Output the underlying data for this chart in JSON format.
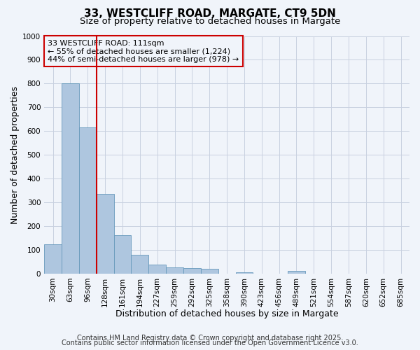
{
  "title": "33, WESTCLIFF ROAD, MARGATE, CT9 5DN",
  "subtitle": "Size of property relative to detached houses in Margate",
  "xlabel": "Distribution of detached houses by size in Margate",
  "ylabel": "Number of detached properties",
  "categories": [
    "30sqm",
    "63sqm",
    "96sqm",
    "128sqm",
    "161sqm",
    "194sqm",
    "227sqm",
    "259sqm",
    "292sqm",
    "325sqm",
    "358sqm",
    "390sqm",
    "423sqm",
    "456sqm",
    "489sqm",
    "521sqm",
    "554sqm",
    "587sqm",
    "620sqm",
    "652sqm",
    "685sqm"
  ],
  "values": [
    122,
    800,
    615,
    335,
    162,
    80,
    38,
    25,
    22,
    20,
    0,
    5,
    0,
    0,
    10,
    0,
    0,
    0,
    0,
    0,
    0
  ],
  "bar_color": "#aec6df",
  "bar_edge_color": "#6699bb",
  "vline_x": 2.5,
  "vline_color": "#cc0000",
  "annotation_line1": "33 WESTCLIFF ROAD: 111sqm",
  "annotation_line2": "← 55% of detached houses are smaller (1,224)",
  "annotation_line3": "44% of semi-detached houses are larger (978) →",
  "annotation_box_color": "#cc0000",
  "ylim": [
    0,
    1000
  ],
  "yticks": [
    0,
    100,
    200,
    300,
    400,
    500,
    600,
    700,
    800,
    900,
    1000
  ],
  "footer1": "Contains HM Land Registry data © Crown copyright and database right 2025.",
  "footer2": "Contains public sector information licensed under the Open Government Licence v3.0.",
  "background_color": "#f0f4fa",
  "grid_color": "#c8d0e0",
  "title_fontsize": 11,
  "subtitle_fontsize": 9.5,
  "axis_label_fontsize": 9,
  "tick_fontsize": 7.5,
  "annotation_fontsize": 8,
  "footer_fontsize": 7
}
